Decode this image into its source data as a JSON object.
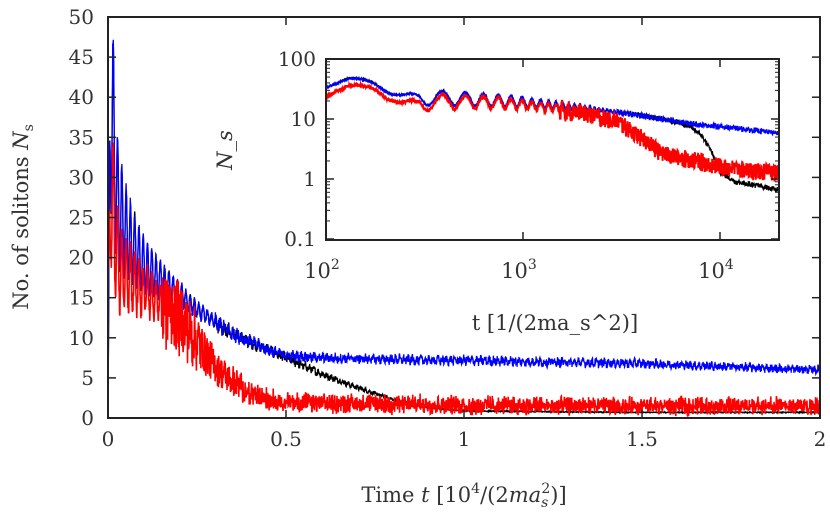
{
  "chart_data": [
    {
      "type": "line",
      "xlabel": "Time t [10^4/(2ma_s^2)]",
      "xlabel_parts": {
        "pre": "Time ",
        "var": "t",
        "mid": " [10",
        "exp": "4",
        "post": "/(2",
        "ma": "ma",
        "sub": "s",
        "sup": "2",
        "end": ")]"
      },
      "ylabel": "No. of solitons N_s",
      "ylabel_parts": {
        "pre": "No. of solitons ",
        "var": "N",
        "sub": "s"
      },
      "xlim": [
        0,
        2
      ],
      "ylim": [
        0,
        50
      ],
      "x_ticks": [
        "0",
        "0.5",
        "1",
        "1.5",
        "2"
      ],
      "x_tick_values": [
        0,
        0.5,
        1,
        1.5,
        2
      ],
      "y_ticks": [
        "0",
        "5",
        "10",
        "15",
        "20",
        "25",
        "30",
        "35",
        "40",
        "45",
        "50"
      ],
      "y_tick_values": [
        0,
        5,
        10,
        15,
        20,
        25,
        30,
        35,
        40,
        45,
        50
      ],
      "grid": false,
      "x": [
        0,
        0.005,
        0.01,
        0.02,
        0.03,
        0.05,
        0.1,
        0.15,
        0.2,
        0.25,
        0.3,
        0.35,
        0.4,
        0.45,
        0.5,
        0.6,
        0.7,
        0.8,
        0.9,
        1.0,
        1.2,
        1.5,
        1.8,
        2.0
      ],
      "series": [
        {
          "color": "#000000",
          "values": [
            0,
            30,
            40,
            30,
            26,
            23,
            19,
            17,
            15.5,
            13.5,
            12,
            10.5,
            9.5,
            8.5,
            7.5,
            5.5,
            3.8,
            2.3,
            1.3,
            0.9,
            0.8,
            0.7,
            0.7,
            0.7
          ]
        },
        {
          "color": "#0000ff",
          "values": [
            0,
            30,
            42,
            30,
            26,
            23,
            19,
            17,
            15.5,
            13.5,
            12,
            10.5,
            9.5,
            8.5,
            7.8,
            7.5,
            7.4,
            7.3,
            7.2,
            7.2,
            7.0,
            6.8,
            6.3,
            6.0
          ]
        },
        {
          "color": "#ff0000",
          "values": [
            14,
            22,
            30,
            22,
            19,
            17.5,
            16,
            14.5,
            12.5,
            9.5,
            6.5,
            4.5,
            3.0,
            2.3,
            2.0,
            1.8,
            1.8,
            1.7,
            1.7,
            1.6,
            1.5,
            1.5,
            1.5,
            1.5
          ]
        }
      ]
    },
    {
      "type": "line",
      "xlabel": "t [1/(2ma_s^2)]",
      "ylabel": "N_s",
      "xscale": "log",
      "yscale": "log",
      "xlim": [
        100,
        20000
      ],
      "ylim": [
        0.1,
        100
      ],
      "x_ticks": [
        {
          "base": "10",
          "exp": "2"
        },
        {
          "base": "10",
          "exp": "3"
        },
        {
          "base": "10",
          "exp": "4"
        }
      ],
      "x_tick_values": [
        100,
        1000,
        10000
      ],
      "y_ticks": [
        "100",
        "10",
        "1",
        "0.1"
      ],
      "y_tick_values": [
        100,
        10,
        1,
        0.1
      ],
      "legend": "none",
      "x": [
        100,
        130,
        180,
        250,
        400,
        700,
        1000,
        1500,
        2000,
        3000,
        4000,
        5000,
        6000,
        7000,
        8000,
        9000,
        10000,
        12000,
        15000,
        20000
      ],
      "series": [
        {
          "color": "#000000",
          "values": [
            38,
            45,
            38,
            24,
            23,
            21,
            19.5,
            17,
            15.5,
            13,
            11.5,
            10,
            9,
            7.5,
            5.5,
            3,
            1.3,
            0.9,
            0.8,
            0.65
          ]
        },
        {
          "color": "#0000ff",
          "values": [
            38,
            44,
            37,
            24,
            23,
            21,
            19.5,
            17,
            15.5,
            13,
            11.5,
            10,
            9,
            8.5,
            8,
            7.8,
            7.5,
            7,
            6.5,
            5.8
          ]
        },
        {
          "color": "#ff0000",
          "values": [
            27,
            34,
            30,
            18,
            20,
            19,
            17.5,
            15,
            13,
            9.5,
            5,
            2.8,
            2.4,
            2.2,
            2.0,
            1.8,
            1.7,
            1.5,
            1.4,
            1.3
          ]
        }
      ]
    }
  ]
}
